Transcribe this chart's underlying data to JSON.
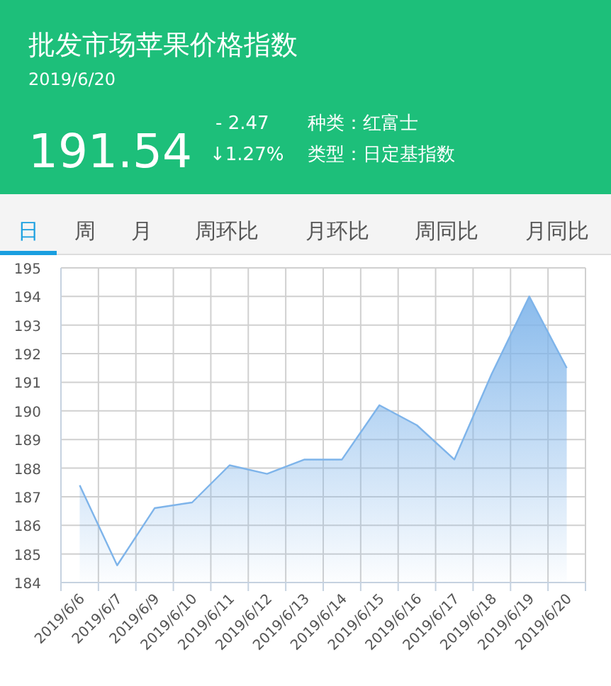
{
  "chart_data": [
    {
      "type": "other",
      "title": "批发市场苹果价格指数",
      "subtitle": "2019/6/20",
      "annotations": [
        "191.54",
        "- 2.47",
        "↓1.27%",
        "种类：红富士",
        "类型：日定基指数",
        "日",
        "周",
        "月",
        "周环比",
        "月环比",
        "周同比",
        "月同比"
      ]
    },
    {
      "type": "area",
      "categories": [
        "2019/6/6",
        "2019/6/7",
        "2019/6/9",
        "2019/6/10",
        "2019/6/11",
        "2019/6/12",
        "2019/6/13",
        "2019/6/14",
        "2019/6/15",
        "2019/6/16",
        "2019/6/17",
        "2019/6/18",
        "2019/6/19",
        "2019/6/20"
      ],
      "values": [
        187.4,
        184.6,
        186.6,
        186.8,
        188.1,
        187.8,
        188.3,
        188.3,
        190.2,
        189.5,
        188.3,
        191.3,
        194.0,
        191.5
      ],
      "color": "#7eb4ea",
      "ylim": [
        184,
        195
      ],
      "yticks": [
        184,
        185,
        186,
        187,
        188,
        189,
        190,
        191,
        192,
        193,
        194,
        195
      ],
      "grid": true
    }
  ]
}
